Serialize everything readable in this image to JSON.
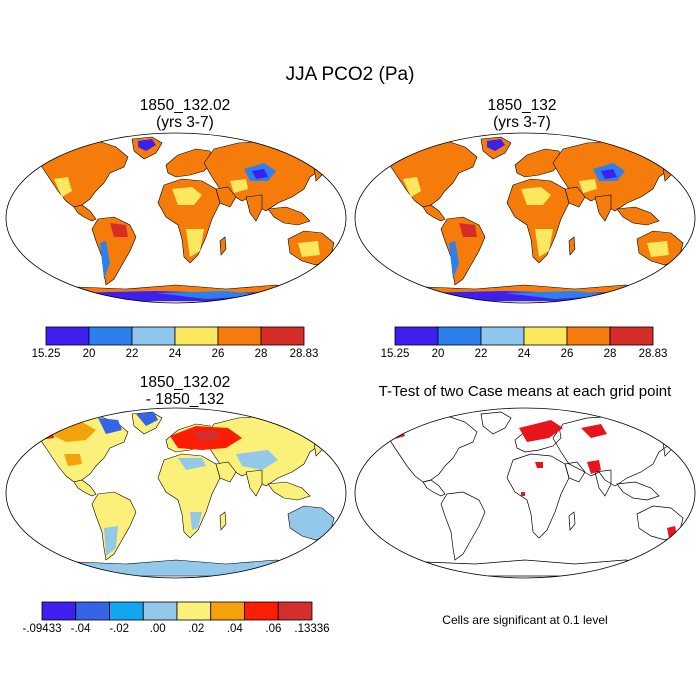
{
  "figure": {
    "title": "JJA PCO2 (Pa)",
    "panels": {
      "top_left": {
        "title_line1": "1850_132.02",
        "title_line2": "(yrs 3-7)"
      },
      "top_right": {
        "title_line1": "1850_132",
        "title_line2": "(yrs 3-7)"
      },
      "bottom_left": {
        "title_line1": "1850_132.02",
        "title_line2": "- 1850_132"
      },
      "bottom_right": {
        "title": "T-Test of two Case means at each grid point",
        "note": "Cells are significant at 0.1 level"
      }
    },
    "colorbars": {
      "top": {
        "colors": [
          "#3d1ff0",
          "#2b80ee",
          "#8ec6ee",
          "#fbe85e",
          "#f57c0b",
          "#d62d28"
        ],
        "labels": [
          "15.25",
          "20",
          "22",
          "24",
          "26",
          "28",
          "28.83"
        ]
      },
      "diff": {
        "colors": [
          "#3d1ff0",
          "#3565e6",
          "#12a6f0",
          "#94c8ea",
          "#fbf07a",
          "#f5a20a",
          "#fc1d05",
          "#d52e2e"
        ],
        "labels": [
          "-.09433",
          "-.04",
          "-.02",
          ".00",
          ".02",
          ".04",
          ".06",
          ".13336"
        ]
      }
    },
    "map_colors": {
      "land_default": "#f57c0b",
      "dark_red": "#d62d28",
      "yellow": "#fbe85e",
      "light_blue": "#8ec6ee",
      "blue": "#2b80ee",
      "violet": "#3d1ff0",
      "diff_land": "#fbf07a",
      "diff_light_blue": "#94c8ea",
      "significant": "#e8141b"
    }
  }
}
